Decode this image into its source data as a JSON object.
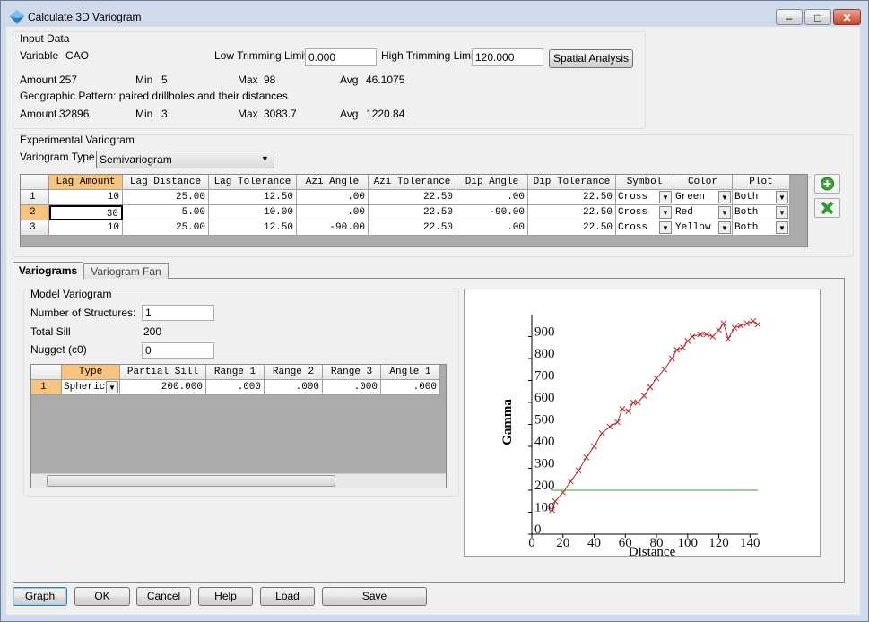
{
  "window": {
    "title": "Calculate 3D Variogram"
  },
  "input_data": {
    "label": "Input Data",
    "variable_label": "Variable",
    "variable": "CAO",
    "low_trim_label": "Low Trimming Limit",
    "low_trim": "0.000",
    "high_trim_label": "High Trimming Limit",
    "high_trim": "120.000",
    "spatial_button": "Spatial Analysis",
    "stats": [
      {
        "label": "Amount",
        "value": "257"
      },
      {
        "label": "Min",
        "value": "5"
      },
      {
        "label": "Max",
        "value": "98"
      },
      {
        "label": "Avg",
        "value": "46.1075"
      }
    ],
    "geo_label": "Geographic Pattern: paired drillholes and their distances",
    "geo_stats": [
      {
        "label": "Amount",
        "value": "32896"
      },
      {
        "label": "Min",
        "value": "3"
      },
      {
        "label": "Max",
        "value": "3083.7"
      },
      {
        "label": "Avg",
        "value": "1220.84"
      }
    ]
  },
  "experimental": {
    "label": "Experimental Variogram",
    "type_label": "Variogram Type",
    "type": "Semivariogram",
    "columns": [
      "Lag Amount",
      "Lag Distance",
      "Lag Tolerance",
      "Azi Angle",
      "Azi Tolerance",
      "Dip Angle",
      "Dip Tolerance",
      "Symbol",
      "Color",
      "Plot"
    ],
    "rows": [
      [
        "1",
        "10",
        "25.00",
        "12.50",
        ".00",
        "22.50",
        ".00",
        "22.50",
        "Cross",
        "Green",
        "Both"
      ],
      [
        "2",
        "30",
        "5.00",
        "10.00",
        ".00",
        "22.50",
        "-90.00",
        "22.50",
        "Cross",
        "Red",
        "Both"
      ],
      [
        "3",
        "10",
        "25.00",
        "12.50",
        "-90.00",
        "22.50",
        ".00",
        "22.50",
        "Cross",
        "Yellow",
        "Both"
      ]
    ]
  },
  "tabs": [
    "Variograms",
    "Variogram Fan"
  ],
  "model": {
    "label": "Model Variogram",
    "structures_label": "Number of Structures:",
    "structures": "1",
    "sill_label": "Total Sill",
    "sill": "200",
    "nugget_label": "Nugget (c0)",
    "nugget": "0",
    "columns": [
      "Type",
      "Partial Sill",
      "Range 1",
      "Range 2",
      "Range 3",
      "Angle 1"
    ],
    "rows": [
      [
        "1",
        "Spheric",
        "200.000",
        ".000",
        ".000",
        ".000",
        ".000"
      ]
    ]
  },
  "chart_data": {
    "type": "line",
    "x_label": "Distance",
    "y_label": "Gamma",
    "xlim": [
      0,
      145
    ],
    "xticks": [
      0,
      20,
      40,
      60,
      80,
      100,
      120,
      140
    ],
    "ylim": [
      0,
      1000
    ],
    "yticks": [
      0,
      100,
      200,
      300,
      400,
      500,
      600,
      700,
      800,
      900
    ],
    "series": [
      {
        "color": "#c0282d",
        "marker": "x",
        "x": [
          13,
          15,
          20,
          25,
          30,
          35,
          40,
          45,
          50,
          55,
          58,
          62,
          65,
          68,
          72,
          76,
          80,
          85,
          90,
          93,
          97,
          100,
          103,
          108,
          112,
          116,
          120,
          123,
          126,
          130,
          134,
          138,
          142,
          145
        ],
        "values": [
          110,
          150,
          190,
          240,
          290,
          350,
          400,
          460,
          490,
          510,
          570,
          560,
          600,
          600,
          630,
          670,
          710,
          750,
          800,
          840,
          850,
          880,
          900,
          910,
          910,
          900,
          930,
          960,
          890,
          940,
          950,
          960,
          970,
          955
        ]
      },
      {
        "color": "#2ca02c",
        "x": [
          12,
          145
        ],
        "values": [
          200,
          200
        ]
      }
    ]
  },
  "buttons": [
    "Graph",
    "OK",
    "Cancel",
    "Help",
    "Load",
    "Save"
  ]
}
